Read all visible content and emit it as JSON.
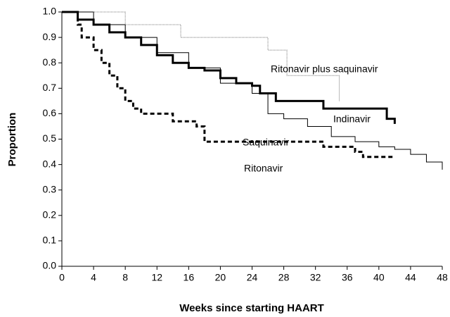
{
  "chart_data": {
    "type": "line",
    "xlabel": "Weeks since starting HAART",
    "ylabel": "Proportion",
    "xlim": [
      0,
      48
    ],
    "ylim": [
      0,
      1
    ],
    "xticks": [
      0,
      4,
      8,
      12,
      16,
      20,
      24,
      28,
      32,
      36,
      40,
      44,
      48
    ],
    "yticks": [
      {
        "value": 0,
        "label": "0.0"
      },
      0.1,
      0.2,
      0.3,
      0.4,
      0.5,
      0.6,
      0.7,
      0.8,
      0.9,
      {
        "value": 1,
        "label": "1.0"
      }
    ],
    "series": [
      {
        "name": "Ritonavir plus saquinavir",
        "color": "#777777",
        "width": 1,
        "dash": "1 1",
        "x": [
          0,
          8,
          8,
          15,
          15,
          26,
          26,
          28.4,
          28.4,
          35,
          35
        ],
        "values": [
          1,
          1,
          0.95,
          0.95,
          0.9,
          0.9,
          0.85,
          0.85,
          0.75,
          0.75,
          0.65
        ]
      },
      {
        "name": "Indinavir",
        "color": "#000000",
        "width": 3,
        "dash": "none",
        "x": [
          0,
          2,
          2,
          4,
          4,
          6,
          6,
          8,
          8,
          10,
          10,
          12,
          12,
          14,
          14,
          16,
          16,
          18,
          18,
          20,
          20,
          22,
          22,
          24,
          24,
          25,
          25,
          27,
          27,
          33,
          33,
          41,
          41,
          42,
          42
        ],
        "values": [
          1,
          1,
          0.97,
          0.97,
          0.95,
          0.95,
          0.92,
          0.92,
          0.9,
          0.9,
          0.87,
          0.87,
          0.83,
          0.83,
          0.8,
          0.8,
          0.78,
          0.78,
          0.77,
          0.77,
          0.74,
          0.74,
          0.72,
          0.72,
          0.71,
          0.71,
          0.68,
          0.68,
          0.65,
          0.65,
          0.62,
          0.62,
          0.58,
          0.58,
          0.56
        ]
      },
      {
        "name": "Saquinavir",
        "color": "#000000",
        "width": 1,
        "dash": "none",
        "x": [
          0,
          4,
          4,
          8,
          8,
          12,
          12,
          16,
          16,
          20,
          20,
          24,
          24,
          26,
          26,
          28,
          28,
          31,
          31,
          34,
          34,
          37,
          37,
          40,
          40,
          42,
          42,
          44,
          44,
          46,
          46,
          48,
          48
        ],
        "values": [
          1,
          1,
          0.95,
          0.95,
          0.9,
          0.9,
          0.84,
          0.84,
          0.78,
          0.78,
          0.72,
          0.72,
          0.68,
          0.68,
          0.6,
          0.6,
          0.58,
          0.58,
          0.55,
          0.55,
          0.51,
          0.51,
          0.49,
          0.49,
          0.47,
          0.47,
          0.46,
          0.46,
          0.44,
          0.44,
          0.41,
          0.41,
          0.38
        ]
      },
      {
        "name": "Ritonavir",
        "color": "#000000",
        "width": 3,
        "dash": "6 4",
        "x": [
          0,
          2,
          2,
          2.5,
          2.5,
          4,
          4,
          5,
          5,
          6,
          6,
          7,
          7,
          8,
          8,
          9,
          9,
          10,
          10,
          14,
          14,
          17,
          17,
          18,
          18,
          33,
          33,
          37,
          37,
          38,
          38,
          42
        ],
        "values": [
          1,
          1,
          0.95,
          0.95,
          0.9,
          0.9,
          0.85,
          0.85,
          0.8,
          0.8,
          0.75,
          0.75,
          0.7,
          0.7,
          0.65,
          0.65,
          0.62,
          0.62,
          0.6,
          0.6,
          0.57,
          0.57,
          0.55,
          0.55,
          0.49,
          0.49,
          0.47,
          0.47,
          0.45,
          0.45,
          0.43,
          0.43
        ]
      }
    ]
  }
}
